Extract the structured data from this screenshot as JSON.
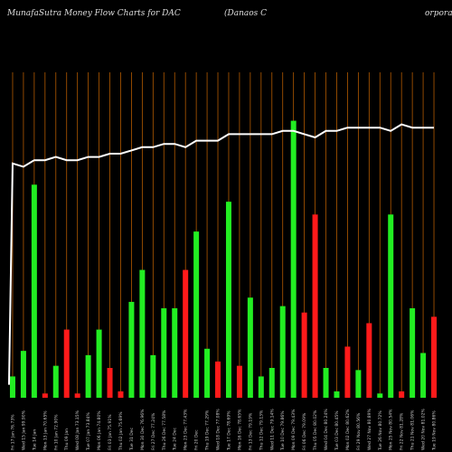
{
  "header": {
    "title_left": "MunafaSutra  Money Flow  Charts for DAC",
    "title_mid": "(Danaos C",
    "title_right": "orporati"
  },
  "chart_data": {
    "type": "bar",
    "title": "MunafaSutra  Money Flow  Charts for DAC",
    "categories": [
      "Fri 17 Jan 76.73%",
      "Wed 15 Jan 99.90%",
      "Tue 14 Jan",
      "Mon 13 Jan 70.65%",
      "Fri 10 Jan 72.90%",
      "Thu 09 Jan",
      "Wed 08 Jan 73.15%",
      "Tue 07 Jan 73.84%",
      "Mon 06 Jan 74.80%",
      "Fri 03 Jan 75.91%",
      "Thu 02 Jan 75.69%",
      "Tue 31 Dec",
      "Mon 30 Dec 76.96%",
      "Fri 27 Dec 77.24%",
      "Thu 26 Dec 77.58%",
      "Tue 24 Dec",
      "Mon 23 Dec 77.43%",
      "Fri 20 Dec",
      "Thu 19 Dec 77.29%",
      "Wed 18 Dec 77.08%",
      "Tue 17 Dec 78.69%",
      "Mon 16 Dec 78.65%",
      "Fri 13 Dec 79.19%",
      "Thu 12 Dec 79.13%",
      "Wed 11 Dec 79.14%",
      "Tue 10 Dec 79.86%",
      "Mon 09 Dec 79.43%",
      "Fri 06 Dec 79.09%",
      "Thu 05 Dec 80.02%",
      "Wed 04 Dec 80.24%",
      "Tue 03 Dec 80.45%",
      "Mon 02 Dec 80.62%",
      "Fri 29 Nov 80.56%",
      "Wed 27 Nov 80.89%",
      "Tue 26 Nov 80.72%",
      "Mon 25 Nov 80.54%",
      "Fri 22 Nov 81.28%",
      "Thu 21 Nov 81.06%",
      "Wed 20 Nov 81.02%",
      "Tue 19 Nov 80.86%"
    ],
    "values": [
      10,
      22,
      100,
      2,
      15,
      32,
      2,
      20,
      32,
      14,
      3,
      45,
      60,
      20,
      42,
      42,
      60,
      78,
      23,
      17,
      92,
      15,
      47,
      10,
      14,
      43,
      130,
      40,
      86,
      14,
      3,
      24,
      13,
      35,
      2,
      86,
      3,
      42,
      21,
      38
    ],
    "colors": [
      "green",
      "green",
      "green",
      "red",
      "green",
      "red",
      "red",
      "green",
      "green",
      "red",
      "red",
      "green",
      "green",
      "green",
      "green",
      "green",
      "red",
      "green",
      "green",
      "red",
      "green",
      "red",
      "green",
      "green",
      "green",
      "green",
      "green",
      "red",
      "red",
      "green",
      "green",
      "red",
      "green",
      "red",
      "green",
      "green",
      "red",
      "green",
      "green",
      "red"
    ],
    "line": [
      72,
      71,
      73,
      73,
      74,
      73,
      73,
      74,
      74,
      75,
      75,
      76,
      77,
      77,
      78,
      78,
      77,
      79,
      79,
      79,
      81,
      81,
      81,
      81,
      81,
      82,
      82,
      81,
      80,
      82,
      82,
      83,
      83,
      83,
      83,
      82,
      84,
      83,
      83,
      83
    ],
    "line_start": 4,
    "series": [
      {
        "values": [
          10,
          22,
          100,
          2,
          15,
          32,
          2,
          20,
          32,
          14,
          3,
          45,
          60,
          20,
          42,
          42,
          60,
          78,
          23,
          17,
          92,
          15,
          47,
          10,
          14,
          43,
          130,
          40,
          86,
          14,
          3,
          24,
          13,
          35,
          2,
          86,
          3,
          42,
          21,
          38
        ]
      }
    ],
    "ylim": [
      0,
      140
    ],
    "line_ylim": [
      0,
      100
    ],
    "grid": true,
    "palette": {
      "green": "#22ee22",
      "red": "#ff1a1a",
      "grid": "#b35a00",
      "line": "#ffffff",
      "bg": "#000000"
    }
  }
}
